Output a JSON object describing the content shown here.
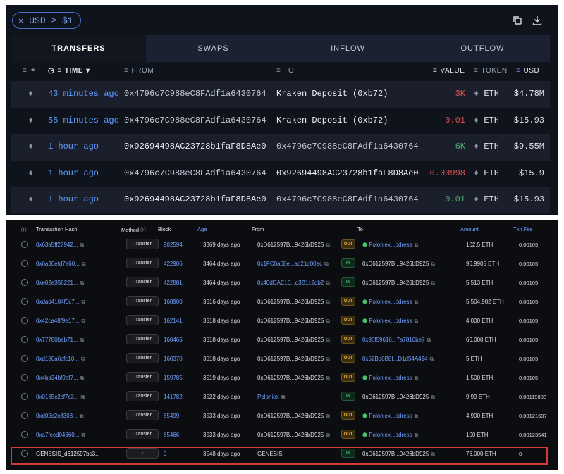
{
  "filter": {
    "label": "USD ≥ $1"
  },
  "tabs": [
    "TRANSFERS",
    "SWAPS",
    "INFLOW",
    "OUTFLOW"
  ],
  "columns": {
    "time": "TIME",
    "from": "FROM",
    "to": "TO",
    "value": "VALUE",
    "token": "TOKEN",
    "usd": "USD"
  },
  "transfers": [
    {
      "time": "43 minutes ago",
      "from": "0x4796c7C988eC8FAdf1a6430764",
      "to": "Kraken Deposit (0xb72)",
      "value": "3K",
      "token": "ETH",
      "usd": "$4.78M"
    },
    {
      "time": "55 minutes ago",
      "from": "0x4796c7C988eC8FAdf1a6430764",
      "to": "Kraken Deposit (0xb72)",
      "value": "0.01",
      "token": "ETH",
      "usd": "$15.93"
    },
    {
      "time": "1 hour ago",
      "from": "0x92694498AC23728b1faF8D8Ae0",
      "to": "0x4796c7C988eC8FAdf1a6430764",
      "value": "6K",
      "token": "ETH",
      "usd": "$9.55M"
    },
    {
      "time": "1 hour ago",
      "from": "0x4796c7C988eC8FAdf1a6430764",
      "to": "0x92694498AC23728b1faF8D8Ae0",
      "value": "0.00998",
      "token": "ETH",
      "usd": "$15.9"
    },
    {
      "time": "1 hour ago",
      "from": "0x92694498AC23728b1faF8D8Ae0",
      "to": "0x4796c7C988eC8FAdf1a6430764",
      "value": "0.01",
      "token": "ETH",
      "usd": "$15.93"
    }
  ],
  "explorer": {
    "columns": {
      "hash": "Transaction Hash",
      "method": "Method",
      "block": "Block",
      "age": "Age",
      "from": "From",
      "to": "To",
      "amount": "Amount",
      "fee": "Txn Fee"
    },
    "rows": [
      {
        "hash": "0x63a5ff27942...",
        "method": "Transfer",
        "block": "902594",
        "age": "3369 days ago",
        "from": "0xD612597B...9426bD925",
        "dir": "OUT",
        "to": "Poloniex...ddress",
        "amount": "102.5 ETH",
        "fee": "0.00105"
      },
      {
        "hash": "0x6a30efd7e60...",
        "method": "Transfer",
        "block": "422906",
        "age": "3464 days ago",
        "from": "0x1FC0a68e...ab21d00ec",
        "dir": "IN",
        "to": "0xD612597B...9426bD925",
        "amount": "96.9905 ETH",
        "fee": "0.00105"
      },
      {
        "hash": "0xe02e358221...",
        "method": "Transfer",
        "block": "422881",
        "age": "3464 days ago",
        "from": "0x40dDAE16...d3B1c2db2",
        "dir": "IN",
        "to": "0xD612597B...9426bD925",
        "amount": "5.513 ETH",
        "fee": "0.00105"
      },
      {
        "hash": "0xdad4184f0c7...",
        "method": "Transfer",
        "block": "168900",
        "age": "3516 days ago",
        "from": "0xD612597B...9426bD925",
        "dir": "OUT",
        "to": "Poloniex...ddress",
        "amount": "5,504.982 ETH",
        "fee": "0.00105"
      },
      {
        "hash": "0x42ca48f9e17...",
        "method": "Transfer",
        "block": "162141",
        "age": "3518 days ago",
        "from": "0xD612597B...9426bD925",
        "dir": "OUT",
        "to": "Poloniex...ddress",
        "amount": "4,000 ETH",
        "fee": "0.00105"
      },
      {
        "hash": "0x77780bab71...",
        "method": "Transfer",
        "block": "160465",
        "age": "3518 days ago",
        "from": "0xD612597B...9426bD925",
        "dir": "OUT",
        "to": "0x96f59616...7a7810be7",
        "amount": "60,000 ETH",
        "fee": "0.00105"
      },
      {
        "hash": "0xd186a6cfc10...",
        "method": "Transfer",
        "block": "160370",
        "age": "3518 days ago",
        "from": "0xD612597B...9426bD925",
        "dir": "OUT",
        "to": "0x52Bd6B8f...D1d54A494",
        "amount": "5 ETH",
        "fee": "0.00105"
      },
      {
        "hash": "0x4ba34bf9af7...",
        "method": "Transfer",
        "block": "159785",
        "age": "3519 days ago",
        "from": "0xD612597B...9426bD925",
        "dir": "OUT",
        "to": "Poloniex...ddress",
        "amount": "1,500 ETH",
        "fee": "0.00105"
      },
      {
        "hash": "0x0165c2cf7c3...",
        "method": "Transfer",
        "block": "141782",
        "age": "3522 days ago",
        "from": "Poloniex",
        "dir": "IN",
        "to": "0xD612597B...9426bD925",
        "amount": "9.99 ETH",
        "fee": "0.00119888"
      },
      {
        "hash": "0xd02c2c8308...",
        "method": "Transfer",
        "block": "85499",
        "age": "3533 days ago",
        "from": "0xD612597B...9426bD925",
        "dir": "OUT",
        "to": "Poloniex...ddress",
        "amount": "4,900 ETH",
        "fee": "0.00121607"
      },
      {
        "hash": "0xa7fecd04660...",
        "method": "Transfer",
        "block": "85466",
        "age": "3533 days ago",
        "from": "0xD612597B...9426bD925",
        "dir": "OUT",
        "to": "Poloniex...ddress",
        "amount": "100 ETH",
        "fee": "0.00123541"
      },
      {
        "hash": "GENESIS_d612597bc3...",
        "method": "-",
        "block": "0",
        "age": "3548 days ago",
        "from": "GENESIS",
        "dir": "IN",
        "to": "0xD612597B...9426bD925",
        "amount": "76,000 ETH",
        "fee": "0"
      }
    ]
  }
}
